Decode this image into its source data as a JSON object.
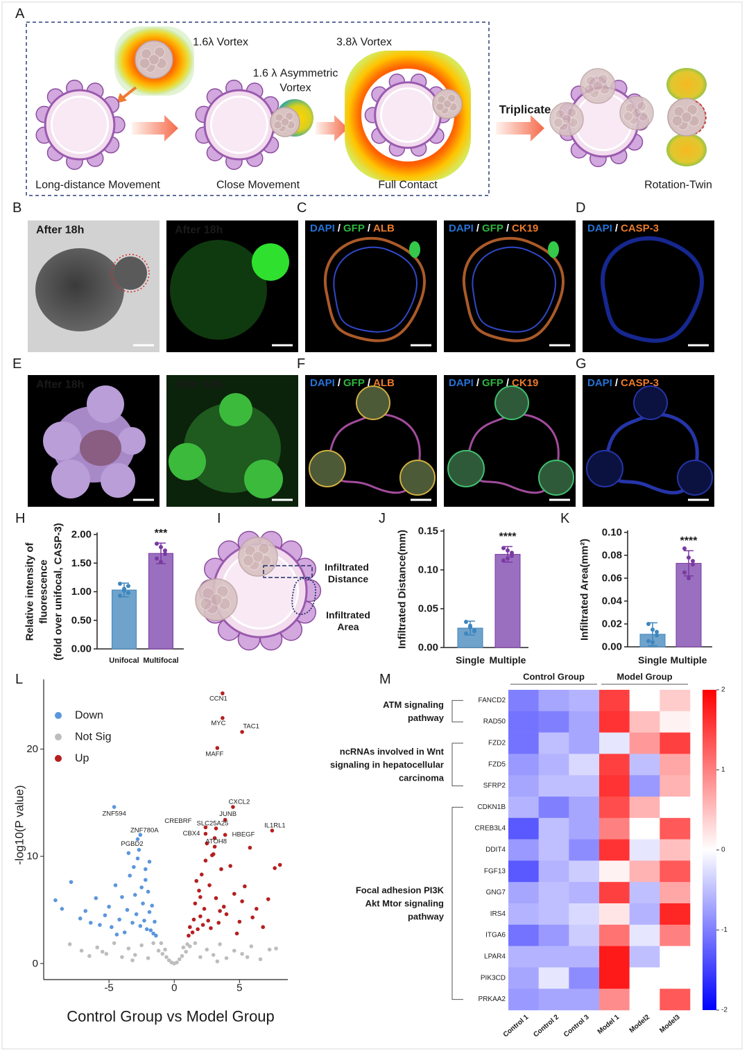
{
  "figure": {
    "A": {
      "label": "A",
      "vortex_1": "1.6λ Vortex",
      "vortex_2": "3.8λ Vortex",
      "asym_lines": [
        "1.6 λ Asymmetric",
        "Vortex"
      ],
      "triplicate": "Triplicate",
      "steps": [
        "Long-distance Movement",
        "Close Movement",
        "Full Contact",
        "Rotation-Twin"
      ]
    },
    "stain_separator": "/",
    "image_rows": [
      {
        "panels": [
          {
            "label": "B",
            "images": [
              {
                "caption": "After 18h"
              },
              {
                "caption": "After 18h"
              }
            ]
          },
          {
            "label": "C",
            "images": [
              {
                "stains": [
                  "DAPI",
                  "GFP",
                  "ALB"
                ]
              },
              {
                "stains": [
                  "DAPI",
                  "GFP",
                  "CK19"
                ]
              }
            ]
          },
          {
            "label": "D",
            "images": [
              {
                "stains": [
                  "DAPI",
                  "CASP-3"
                ]
              }
            ]
          }
        ]
      },
      {
        "panels": [
          {
            "label": "E",
            "images": [
              {
                "caption": "After 18h"
              },
              {
                "caption": "After 18h"
              }
            ]
          },
          {
            "label": "F",
            "images": [
              {
                "stains": [
                  "DAPI",
                  "GFP",
                  "ALB"
                ]
              },
              {
                "stains": [
                  "DAPI",
                  "GFP",
                  "CK19"
                ]
              }
            ]
          },
          {
            "label": "G",
            "images": [
              {
                "stains": [
                  "DAPI",
                  "CASP-3"
                ]
              }
            ]
          }
        ]
      }
    ],
    "I": {
      "label": "I",
      "distance_lines": [
        "Infiltrated",
        "Distance"
      ],
      "area_lines": [
        "Infiltrated",
        "Area"
      ]
    }
  },
  "chart_data": [
    {
      "type": "bar",
      "panel_label": "H",
      "ylabel_lines": [
        "Relative intensity of",
        "fluorescence",
        "(fold over unifocal,  CASP-3)"
      ],
      "categories": [
        "Unifocal",
        "Multifocal"
      ],
      "values": [
        1.03,
        1.67
      ],
      "errors": [
        0.12,
        0.18
      ],
      "points": [
        [
          1.14,
          1.05,
          0.98,
          0.93,
          1.02,
          1.1
        ],
        [
          1.84,
          1.78,
          1.66,
          1.58,
          1.52,
          1.72
        ]
      ],
      "colors": [
        "#6fa3cc",
        "#9b6fc0"
      ],
      "point_colors": [
        "#3f86bd",
        "#7a3aa0"
      ],
      "significance": "***",
      "ylim": [
        0,
        2
      ],
      "yticks": [
        {
          "value": 0,
          "label": "0.00"
        },
        {
          "value": 0.5,
          "label": "0.50"
        },
        {
          "value": 1,
          "label": "1.00"
        },
        {
          "value": 1.5,
          "label": "1.50"
        },
        {
          "value": 2,
          "label": "2.00"
        }
      ]
    },
    {
      "type": "bar",
      "panel_label": "J",
      "ylabel_lines": [
        "Infiltrated Distance(mm)"
      ],
      "categories": [
        "Single",
        "Multiple"
      ],
      "values": [
        0.025,
        0.12
      ],
      "errors": [
        0.009,
        0.01
      ],
      "points": [
        [
          0.033,
          0.028,
          0.022,
          0.018,
          0.026,
          0.021
        ],
        [
          0.128,
          0.125,
          0.118,
          0.112,
          0.115,
          0.122
        ]
      ],
      "colors": [
        "#6fa3cc",
        "#9b6fc0"
      ],
      "point_colors": [
        "#3f86bd",
        "#7a3aa0"
      ],
      "significance": "****",
      "ylim": [
        0,
        0.15
      ],
      "yticks": [
        {
          "value": 0,
          "label": "0.00"
        },
        {
          "value": 0.05,
          "label": "0.05"
        },
        {
          "value": 0.1,
          "label": "0.10"
        },
        {
          "value": 0.15,
          "label": "0.15"
        }
      ]
    },
    {
      "type": "bar",
      "panel_label": "K",
      "ylabel_lines": [
        "Infiltrated Area(mm²)"
      ],
      "categories": [
        "Single",
        "Multiple"
      ],
      "values": [
        0.011,
        0.073
      ],
      "errors": [
        0.01,
        0.011
      ],
      "points": [
        [
          0.02,
          0.015,
          0.01,
          0.005,
          0.004,
          0.013
        ],
        [
          0.086,
          0.078,
          0.072,
          0.065,
          0.06,
          0.075
        ]
      ],
      "colors": [
        "#6fa3cc",
        "#9b6fc0"
      ],
      "point_colors": [
        "#3f86bd",
        "#7a3aa0"
      ],
      "significance": "****",
      "ylim": [
        0,
        0.1
      ],
      "yticks": [
        {
          "value": 0,
          "label": "0.00"
        },
        {
          "value": 0.02,
          "label": "0.02"
        },
        {
          "value": 0.04,
          "label": "0.04"
        },
        {
          "value": 0.06,
          "label": "0.06"
        },
        {
          "value": 0.08,
          "label": "0.08"
        },
        {
          "value": 0.1,
          "label": "0.10"
        }
      ]
    },
    {
      "type": "scatter",
      "panel_label": "L",
      "xlabel": "Control Group vs Model Group",
      "ylabel": "-log10(P value)",
      "xlim": [
        -10,
        8.7
      ],
      "ylim": [
        -1.5,
        26.5
      ],
      "xticks": [
        -5,
        0,
        5
      ],
      "yticks": [
        0,
        10,
        20
      ],
      "series": [
        {
          "name": "Down",
          "color": "#5b96dc",
          "x": [
            -9.1,
            -8.6,
            -7.9,
            -7.2,
            -6.8,
            -6.4,
            -6.0,
            -5.7,
            -5.3,
            -5.0,
            -4.8,
            -4.5,
            -4.2,
            -4.0,
            -3.8,
            -3.6,
            -3.4,
            -3.2,
            -3.0,
            -2.9,
            -2.8,
            -2.6,
            -2.5,
            -2.4,
            -2.3,
            -2.2,
            -2.1,
            -2.0,
            -1.9,
            -1.8,
            -1.7,
            -1.6,
            -1.5,
            -1.4,
            -3.5,
            -2.7,
            -3.1,
            -2.2,
            -4.4,
            -1.9
          ],
          "y": [
            5.9,
            5.1,
            7.6,
            4.2,
            4.9,
            3.8,
            6.1,
            3.6,
            4.5,
            5.3,
            3.4,
            7.3,
            4.1,
            6.2,
            2.9,
            5.0,
            8.2,
            3.8,
            6.4,
            4.6,
            9.8,
            3.5,
            7.1,
            5.6,
            4.0,
            8.8,
            3.2,
            6.7,
            4.8,
            3.1,
            5.4,
            2.8,
            3.9,
            2.6,
            10.3,
            10.6,
            9.0,
            7.8,
            2.7,
            9.5
          ]
        },
        {
          "name": "Not Sig",
          "color": "#bdbdbd",
          "x": [
            -8.0,
            -7.1,
            -6.5,
            -5.9,
            -5.2,
            -4.6,
            -4.0,
            -3.5,
            -3.0,
            -2.5,
            -2.0,
            -1.6,
            -1.2,
            -0.9,
            -0.6,
            -0.4,
            -0.2,
            0.0,
            0.2,
            0.4,
            0.6,
            0.9,
            1.2,
            1.6,
            2.0,
            2.5,
            3.0,
            3.5,
            4.0,
            4.6,
            5.2,
            5.9,
            6.6,
            7.3,
            7.8,
            -1.0,
            -0.7,
            0.7,
            1.0,
            -3.2,
            3.3,
            -5.5,
            5.6
          ],
          "y": [
            1.8,
            1.2,
            0.7,
            1.5,
            0.9,
            1.9,
            0.6,
            1.4,
            0.8,
            1.7,
            0.5,
            1.9,
            1.2,
            0.9,
            0.6,
            0.3,
            0.1,
            0.0,
            0.1,
            0.4,
            0.7,
            1.1,
            1.6,
            1.9,
            0.6,
            1.3,
            0.8,
            1.8,
            0.5,
            1.2,
            0.9,
            1.6,
            0.4,
            1.3,
            1.4,
            1.9,
            1.3,
            1.5,
            1.8,
            0.3,
            0.2,
            1.1,
            0.6
          ]
        },
        {
          "name": "Up",
          "color": "#b51f1f",
          "x": [
            1.1,
            1.2,
            1.4,
            1.5,
            1.6,
            1.8,
            1.9,
            2.0,
            2.1,
            2.2,
            2.3,
            2.4,
            2.6,
            2.7,
            2.8,
            3.0,
            3.2,
            3.4,
            3.6,
            3.8,
            4.0,
            4.3,
            4.6,
            5.0,
            5.4,
            5.8,
            6.3,
            6.8,
            7.2,
            7.7,
            8.1,
            2.5,
            3.1,
            2.0,
            1.7,
            3.5,
            4.8,
            2.9,
            6.0,
            5.2
          ],
          "y": [
            2.6,
            3.4,
            2.9,
            4.1,
            5.6,
            3.2,
            6.8,
            4.4,
            8.3,
            3.6,
            5.1,
            9.6,
            4.0,
            7.3,
            3.3,
            10.2,
            6.1,
            3.8,
            8.8,
            5.3,
            4.6,
            9.1,
            6.5,
            3.9,
            7.2,
            10.8,
            5.1,
            3.4,
            6.0,
            8.9,
            9.2,
            11.2,
            10.9,
            6.2,
            7.7,
            4.9,
            2.8,
            10.1,
            4.3,
            5.8
          ]
        }
      ],
      "annotations": [
        {
          "label": "CCN1",
          "x": 3.7,
          "y": 25.2
        },
        {
          "label": "MYC",
          "x": 3.7,
          "y": 22.9
        },
        {
          "label": "TAC1",
          "x": 5.2,
          "y": 21.6
        },
        {
          "label": "MAFF",
          "x": 3.3,
          "y": 20.1
        },
        {
          "label": "CXCL2",
          "x": 4.5,
          "y": 14.6
        },
        {
          "label": "JUNB",
          "x": 3.9,
          "y": 13.4
        },
        {
          "label": "IL1RL1",
          "x": 7.5,
          "y": 12.4
        },
        {
          "label": "HBEGF",
          "x": 3.9,
          "y": 12.0
        },
        {
          "label": "SLC25A25",
          "x": 3.2,
          "y": 12.6
        },
        {
          "label": "CREBRF",
          "x": 2.4,
          "y": 12.7
        },
        {
          "label": "CBX4",
          "x": 2.4,
          "y": 12.1
        },
        {
          "label": "ATOH8",
          "x": 3.1,
          "y": 11.7
        },
        {
          "label": "ZNF594",
          "x": -4.6,
          "y": 14.6
        },
        {
          "label": "ZNF780A",
          "x": -2.6,
          "y": 12.0
        },
        {
          "label": "PGBD2",
          "x": -2.8,
          "y": 11.6
        }
      ]
    },
    {
      "type": "heatmap",
      "panel_label": "M",
      "groups": [
        "Control Group",
        "Model Group"
      ],
      "columns": [
        "Control 1",
        "Control 2",
        "Control 3",
        "Model 1",
        "Model2",
        "Model3"
      ],
      "pathways": [
        {
          "lines": [
            "ATM signaling",
            "pathway"
          ],
          "genes": [
            "FANCD2",
            "RAD50"
          ],
          "values": [
            [
              -1.0,
              -0.7,
              -0.6,
              1.5,
              0.0,
              0.4
            ],
            [
              -1.1,
              -1.0,
              -0.7,
              1.6,
              0.5,
              0.1
            ]
          ]
        },
        {
          "lines": [
            "ncRNAs involved in Wnt",
            "signaling in hepatocellular",
            "carcinoma"
          ],
          "genes": [
            "FZD2",
            "FZD5",
            "SFRP2"
          ],
          "values": [
            [
              -1.1,
              -0.5,
              -0.7,
              -0.2,
              0.8,
              1.5
            ],
            [
              -0.8,
              -0.6,
              -0.3,
              1.5,
              -0.5,
              0.7
            ],
            [
              -0.7,
              -0.5,
              -0.5,
              1.6,
              -0.8,
              0.6
            ]
          ]
        },
        {
          "lines": [
            "Focal adhesion PI3K",
            "Akt Mtor signaling",
            "pathway"
          ],
          "genes": [
            "CDKN1B",
            "CREB3L4",
            "DDIT4",
            "FGF13",
            "GNG7",
            "IRS4",
            "ITGA6",
            "LPAR4",
            "PIK3CD",
            "PRKAA2"
          ],
          "values": [
            [
              -0.6,
              -1.0,
              -0.7,
              1.4,
              0.6,
              0.0
            ],
            [
              -1.3,
              -0.5,
              -0.7,
              1.0,
              0.0,
              1.3
            ],
            [
              -0.8,
              -0.5,
              -0.9,
              1.6,
              -0.2,
              0.5
            ],
            [
              -1.3,
              -0.6,
              -0.4,
              0.1,
              0.6,
              1.3
            ],
            [
              -0.7,
              -0.5,
              -0.6,
              1.5,
              -0.5,
              0.7
            ],
            [
              -0.6,
              -0.5,
              -0.3,
              0.2,
              -0.6,
              1.7
            ],
            [
              -1.1,
              -0.8,
              -0.4,
              1.1,
              -0.2,
              1.0
            ],
            [
              -0.6,
              -0.6,
              -0.6,
              1.8,
              -0.5,
              0.0
            ],
            [
              -0.7,
              -0.2,
              -0.9,
              1.8,
              0.0,
              0.0
            ],
            [
              -0.8,
              -0.7,
              -0.7,
              0.9,
              0.0,
              1.3
            ]
          ]
        }
      ],
      "colorscale": [
        "#0000ff",
        "#ffffff",
        "#ff0000"
      ],
      "zlim": [
        -2,
        2
      ],
      "zticks": [
        2,
        1,
        0,
        -1,
        -2
      ]
    }
  ]
}
